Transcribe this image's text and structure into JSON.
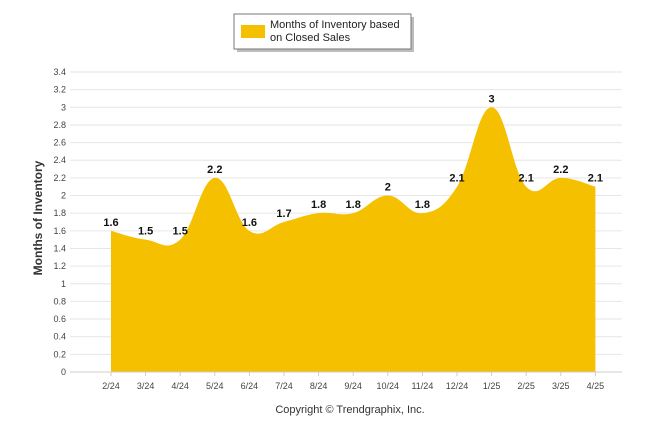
{
  "chart_data": {
    "type": "area",
    "categories": [
      "2/24",
      "3/24",
      "4/24",
      "5/24",
      "6/24",
      "7/24",
      "8/24",
      "9/24",
      "10/24",
      "11/24",
      "12/24",
      "1/25",
      "2/25",
      "3/25",
      "4/25"
    ],
    "series": [
      {
        "name_line1": "Months of Inventory based",
        "name_line2": "on Closed Sales",
        "values": [
          1.6,
          1.5,
          1.5,
          2.2,
          1.6,
          1.7,
          1.8,
          1.8,
          2.0,
          1.8,
          2.1,
          3.0,
          2.1,
          2.2,
          2.1
        ],
        "labels": [
          "1.6",
          "1.5",
          "1.5",
          "2.2",
          "1.6",
          "1.7",
          "1.8",
          "1.8",
          "2",
          "1.8",
          "2.1",
          "3",
          "2.1",
          "2.2",
          "2.1"
        ]
      }
    ],
    "ylabel": "Months of Inventory",
    "ylim": [
      0,
      3.4
    ],
    "yticks": [
      "0",
      "0.2",
      "0.4",
      "0.6",
      "0.8",
      "1",
      "1.2",
      "1.4",
      "1.6",
      "1.8",
      "2",
      "2.2",
      "2.4",
      "2.6",
      "2.8",
      "3",
      "3.2",
      "3.4"
    ],
    "legend_position": "top-center",
    "grid": true,
    "colors": {
      "fill": "#F5C000",
      "grid": "#E6E6E6",
      "axis": "#CCCCCC"
    }
  },
  "footer": {
    "copyright": "Copyright © Trendgraphix, Inc."
  }
}
